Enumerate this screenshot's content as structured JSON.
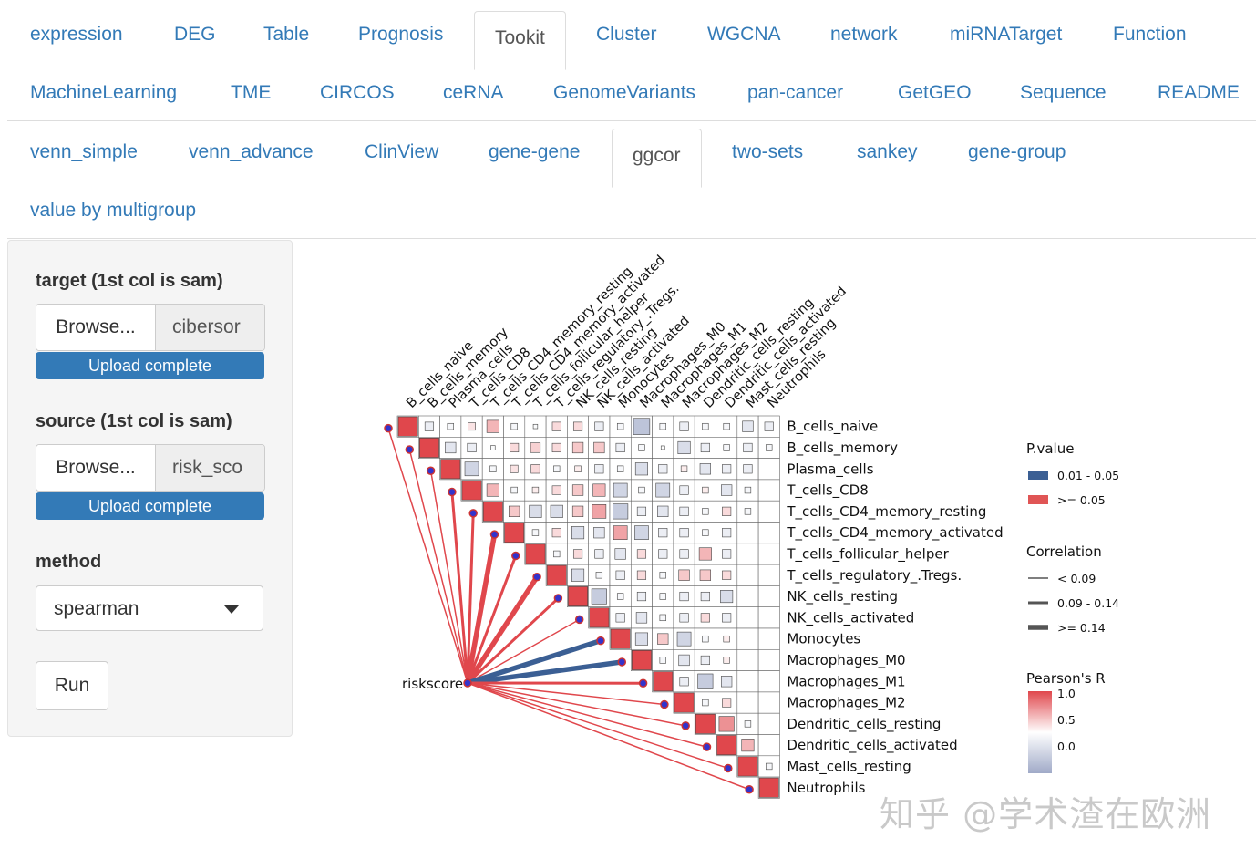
{
  "nav": {
    "row1": [
      "expression",
      "DEG",
      "Table",
      "Prognosis",
      "Tookit",
      "Cluster",
      "WGCNA",
      "network",
      "miRNATarget",
      "Function"
    ],
    "row2": [
      "MachineLearning",
      "TME",
      "CIRCOS",
      "ceRNA",
      "GenomeVariants",
      "pan-cancer",
      "GetGEO",
      "Sequence",
      "README"
    ],
    "active": "Tookit"
  },
  "subnav": {
    "row1": [
      "venn_simple",
      "venn_advance",
      "ClinView",
      "gene-gene",
      "ggcor",
      "two-sets",
      "sankey",
      "gene-group"
    ],
    "row2": [
      "value by multigroup"
    ],
    "active": "ggcor"
  },
  "sidebar": {
    "target_label": "target (1st col is sam)",
    "target_browse": "Browse...",
    "target_file": "cibersor",
    "target_status": "Upload complete",
    "source_label": "source (1st col is sam)",
    "source_browse": "Browse...",
    "source_file": "risk_sco",
    "source_status": "Upload complete",
    "method_label": "method",
    "method_value": "spearman",
    "run_label": "Run"
  },
  "chart_data": {
    "type": "heatmap",
    "variables": [
      "B_cells_naive",
      "B_cells_memory",
      "Plasma_cells",
      "T_cells_CD8",
      "T_cells_CD4_memory_resting",
      "T_cells_CD4_memory_activated",
      "T_cells_follicular_helper",
      "T_cells_regulatory_.Tregs.",
      "NK_cells_resting",
      "NK_cells_activated",
      "Monocytes",
      "Macrophages_M0",
      "Macrophages_M1",
      "Macrophages_M2",
      "Dendritic_cells_resting",
      "Dendritic_cells_activated",
      "Mast_cells_resting",
      "Neutrophils"
    ],
    "top_labels": [
      "B_cells_naive",
      "B_cells_memory",
      "Plasma_cells",
      "T_cells_CD8",
      "T_cells_CD4_memory_resting",
      "T_cells_CD4_memory_activated",
      "T_cells_follicular_helper",
      "T_cells_regulatory_.Tregs.",
      "NK_cells_resting",
      "NK_cells_activated",
      "Monocytes",
      "Macrophages_M0",
      "Macrophages_M1",
      "Macrophages_M2",
      "Dendritic_cells_resting",
      "Dendritic_cells_activated",
      "Mast_cells_resting",
      "Neutrophils"
    ],
    "upper_triangle_r": [
      [
        1.0,
        -0.2,
        -0.1,
        0.15,
        0.4,
        -0.1,
        -0.05,
        0.2,
        0.2,
        -0.2,
        -0.1,
        -0.7,
        -0.1,
        -0.2,
        -0.1,
        -0.1,
        -0.3,
        -0.2
      ],
      [
        1.0,
        -0.3,
        -0.2,
        -0.05,
        0.2,
        0.25,
        0.2,
        0.3,
        0.3,
        -0.2,
        -0.1,
        0.0,
        -0.4,
        -0.2,
        -0.1,
        -0.2,
        -0.1
      ],
      [
        1.0,
        -0.5,
        -0.1,
        0.15,
        0.2,
        -0.1,
        0.1,
        -0.2,
        -0.1,
        -0.4,
        -0.2,
        0.1,
        -0.3,
        -0.2,
        -0.2
      ],
      [
        1.0,
        0.4,
        -0.1,
        0.1,
        0.2,
        0.3,
        0.4,
        -0.5,
        -0.1,
        -0.5,
        -0.2,
        0.1,
        -0.3,
        -0.1
      ],
      [
        1.0,
        0.3,
        -0.4,
        -0.4,
        0.3,
        0.5,
        -0.6,
        -0.2,
        -0.3,
        -0.2,
        -0.1,
        0.2,
        -0.1
      ],
      [
        1.0,
        -0.1,
        0.2,
        -0.4,
        -0.3,
        0.5,
        -0.5,
        -0.2,
        -0.2,
        -0.1,
        -0.2
      ],
      [
        1.0,
        -0.1,
        0.2,
        -0.2,
        -0.3,
        0.2,
        -0.2,
        -0.2,
        0.4,
        -0.2
      ],
      [
        1.0,
        -0.4,
        -0.1,
        -0.2,
        0.2,
        -0.1,
        0.3,
        0.3,
        0.2
      ],
      [
        1.0,
        -0.6,
        -0.1,
        -0.2,
        -0.1,
        -0.2,
        -0.2,
        -0.4
      ],
      [
        1.0,
        -0.2,
        -0.3,
        -0.1,
        -0.2,
        0.2,
        -0.2
      ],
      [
        1.0,
        -0.4,
        0.3,
        -0.5,
        -0.1,
        0.1
      ],
      [
        1.0,
        -0.1,
        -0.3,
        -0.2,
        0.1
      ],
      [
        1.0,
        -0.2,
        -0.6,
        -0.3
      ],
      [
        1.0,
        -0.1,
        0.2
      ],
      [
        1.0,
        0.6,
        -0.1
      ],
      [
        1.0,
        0.4
      ],
      [
        1.0,
        -0.1
      ],
      [
        1.0
      ]
    ],
    "link_source": "riskscore",
    "links": [
      {
        "target": "B_cells_naive",
        "p": ">= 0.05",
        "r_width": "< 0.09"
      },
      {
        "target": "B_cells_memory",
        "p": ">= 0.05",
        "r_width": "< 0.09"
      },
      {
        "target": "Plasma_cells",
        "p": ">= 0.05",
        "r_width": "< 0.09"
      },
      {
        "target": "T_cells_CD8",
        "p": ">= 0.05",
        "r_width": "0.09 - 0.14"
      },
      {
        "target": "T_cells_CD4_memory_resting",
        "p": ">= 0.05",
        "r_width": "0.09 - 0.14"
      },
      {
        "target": "T_cells_CD4_memory_activated",
        "p": ">= 0.05",
        "r_width": ">= 0.14"
      },
      {
        "target": "T_cells_follicular_helper",
        "p": ">= 0.05",
        "r_width": "0.09 - 0.14"
      },
      {
        "target": "T_cells_regulatory_.Tregs.",
        "p": ">= 0.05",
        "r_width": ">= 0.14"
      },
      {
        "target": "NK_cells_resting",
        "p": ">= 0.05",
        "r_width": "0.09 - 0.14"
      },
      {
        "target": "NK_cells_activated",
        "p": ">= 0.05",
        "r_width": "< 0.09"
      },
      {
        "target": "Monocytes",
        "p": "0.01 - 0.05",
        "r_width": ">= 0.14"
      },
      {
        "target": "Macrophages_M0",
        "p": "0.01 - 0.05",
        "r_width": ">= 0.14"
      },
      {
        "target": "Macrophages_M1",
        "p": ">= 0.05",
        "r_width": "0.09 - 0.14"
      },
      {
        "target": "Macrophages_M2",
        "p": ">= 0.05",
        "r_width": "< 0.09"
      },
      {
        "target": "Dendritic_cells_resting",
        "p": ">= 0.05",
        "r_width": "< 0.09"
      },
      {
        "target": "Dendritic_cells_activated",
        "p": ">= 0.05",
        "r_width": "< 0.09"
      },
      {
        "target": "Mast_cells_resting",
        "p": ">= 0.05",
        "r_width": "< 0.09"
      },
      {
        "target": "Neutrophils",
        "p": ">= 0.05",
        "r_width": "< 0.09"
      }
    ],
    "legend_pvalue": {
      "title": "P.value",
      "items": [
        {
          "label": "0.01 - 0.05",
          "color": "#3b5f94"
        },
        {
          "label": ">= 0.05",
          "color": "#e05555"
        }
      ]
    },
    "legend_corr": {
      "title": "Correlation",
      "items": [
        "< 0.09",
        "0.09 - 0.14",
        ">= 0.14"
      ]
    },
    "legend_r": {
      "title": "Pearson's R",
      "ticks": [
        "1.0",
        "0.5",
        "0.0"
      ]
    },
    "colors": {
      "pos": "#e0474c",
      "neg": "#3b5f94",
      "node": "#cc3333",
      "node_fill": "#3333cc"
    }
  },
  "watermark": "知乎 @学术渣在欧洲"
}
